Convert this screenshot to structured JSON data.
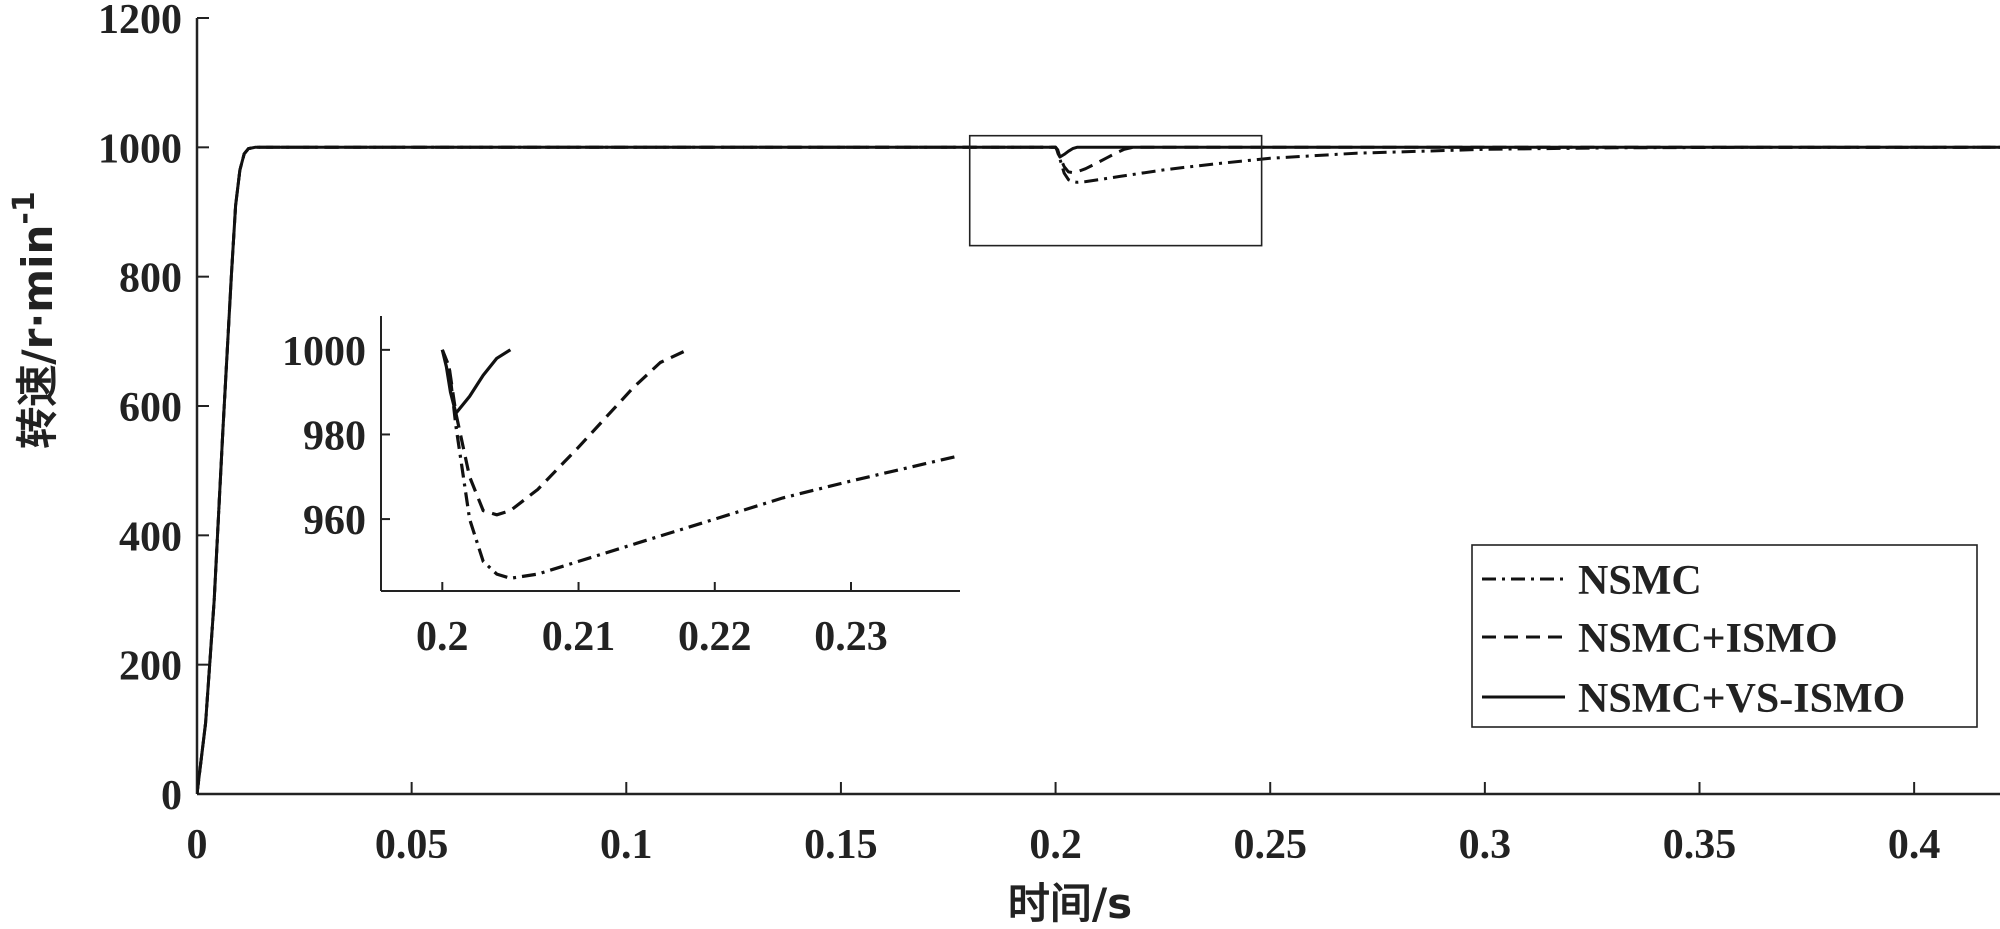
{
  "chart_data": {
    "type": "line",
    "xlabel": "时间/s",
    "ylabel_main": "转速/r·min",
    "ylabel_sup": "-1",
    "xlim": [
      0,
      0.42
    ],
    "ylim": [
      0,
      1200
    ],
    "xticks": [
      0,
      0.05,
      0.1,
      0.15,
      0.2,
      0.25,
      0.3,
      0.35,
      0.4
    ],
    "xtick_labels": [
      "0",
      "0.05",
      "0.1",
      "0.15",
      "0.2",
      "0.25",
      "0.3",
      "0.35",
      "0.4"
    ],
    "yticks": [
      0,
      200,
      400,
      600,
      800,
      1000,
      1200
    ],
    "ytick_labels": [
      "0",
      "200",
      "400",
      "600",
      "800",
      "1000",
      "1200"
    ],
    "grid": false,
    "legend_position": "bottom-right",
    "zoom_box": {
      "x": [
        0.18,
        0.248
      ],
      "y": [
        848,
        1018
      ]
    },
    "series": [
      {
        "name": "NSMC",
        "dash": "dashdot",
        "points": [
          [
            0,
            0
          ],
          [
            0.002,
            110
          ],
          [
            0.004,
            300
          ],
          [
            0.006,
            560
          ],
          [
            0.008,
            800
          ],
          [
            0.009,
            910
          ],
          [
            0.01,
            965
          ],
          [
            0.011,
            990
          ],
          [
            0.012,
            998
          ],
          [
            0.0135,
            1000
          ],
          [
            0.2,
            1000
          ],
          [
            0.2005,
            996
          ],
          [
            0.201,
            982
          ],
          [
            0.202,
            960
          ],
          [
            0.203,
            950
          ],
          [
            0.204,
            947
          ],
          [
            0.205,
            946
          ],
          [
            0.207,
            947
          ],
          [
            0.21,
            950
          ],
          [
            0.215,
            955
          ],
          [
            0.22,
            960
          ],
          [
            0.225,
            965
          ],
          [
            0.23,
            969
          ],
          [
            0.238,
            975
          ],
          [
            0.25,
            983
          ],
          [
            0.27,
            991
          ],
          [
            0.3,
            997
          ],
          [
            0.33,
            999.3
          ],
          [
            0.36,
            999.9
          ],
          [
            0.42,
            1000
          ]
        ]
      },
      {
        "name": "NSMC+ISMO",
        "dash": "dashed",
        "points": [
          [
            0,
            0
          ],
          [
            0.002,
            110
          ],
          [
            0.004,
            300
          ],
          [
            0.006,
            560
          ],
          [
            0.008,
            800
          ],
          [
            0.009,
            910
          ],
          [
            0.01,
            965
          ],
          [
            0.011,
            990
          ],
          [
            0.012,
            998
          ],
          [
            0.0135,
            1000
          ],
          [
            0.2,
            1000
          ],
          [
            0.2005,
            996
          ],
          [
            0.201,
            985
          ],
          [
            0.202,
            970
          ],
          [
            0.203,
            962
          ],
          [
            0.204,
            961
          ],
          [
            0.205,
            962
          ],
          [
            0.207,
            967
          ],
          [
            0.21,
            977
          ],
          [
            0.212,
            984
          ],
          [
            0.214,
            991
          ],
          [
            0.216,
            997
          ],
          [
            0.218,
            1000
          ],
          [
            0.42,
            1000
          ]
        ]
      },
      {
        "name": "NSMC+VS-ISMO",
        "dash": "solid",
        "points": [
          [
            0,
            0
          ],
          [
            0.002,
            110
          ],
          [
            0.004,
            300
          ],
          [
            0.006,
            560
          ],
          [
            0.008,
            800
          ],
          [
            0.009,
            910
          ],
          [
            0.01,
            965
          ],
          [
            0.011,
            990
          ],
          [
            0.012,
            998
          ],
          [
            0.0135,
            1000
          ],
          [
            0.2,
            1000
          ],
          [
            0.2003,
            996
          ],
          [
            0.2006,
            990
          ],
          [
            0.201,
            985
          ],
          [
            0.202,
            989
          ],
          [
            0.203,
            994
          ],
          [
            0.204,
            998
          ],
          [
            0.205,
            1000
          ],
          [
            0.42,
            1000
          ]
        ]
      }
    ],
    "inset": {
      "xlim": [
        0.1955,
        0.238
      ],
      "ylim": [
        943,
        1008
      ],
      "xticks": [
        0.2,
        0.21,
        0.22,
        0.23
      ],
      "xtick_labels": [
        "0.2",
        "0.21",
        "0.22",
        "0.23"
      ],
      "yticks": [
        960,
        980,
        1000
      ],
      "ytick_labels": [
        "960",
        "980",
        "1000"
      ]
    }
  }
}
